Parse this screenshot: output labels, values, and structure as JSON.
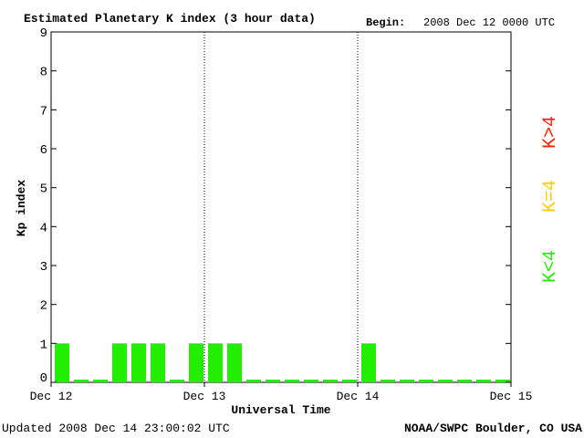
{
  "header": {
    "title": "Estimated Planetary K index (3 hour data)",
    "begin_label": "Begin:",
    "begin_value": "2008 Dec 12 0000 UTC"
  },
  "footer": {
    "updated_label": "Updated",
    "updated_value": "2008 Dec 14 23:00:02 UTC",
    "credit": "NOAA/SWPC Boulder, CO USA"
  },
  "legend": [
    {
      "label": "K>4",
      "color": "#ff2200"
    },
    {
      "label": "K=4",
      "color": "#ffcc00"
    },
    {
      "label": "K<4",
      "color": "#22ee00"
    }
  ],
  "chart_data": {
    "type": "bar",
    "title": "Estimated Planetary K index (3 hour data)",
    "xlabel": "Universal Time",
    "ylabel": "Kp index",
    "ylim": [
      0,
      9
    ],
    "yticks": [
      0,
      1,
      2,
      3,
      4,
      5,
      6,
      7,
      8,
      9
    ],
    "day_labels": [
      "Dec 12",
      "Dec 13",
      "Dec 14",
      "Dec 15"
    ],
    "slots_per_day": 8,
    "bar_color": "#22ee00",
    "values": [
      1,
      0,
      0,
      1,
      1,
      1,
      0,
      1,
      1,
      1,
      0,
      0,
      0,
      0,
      0,
      0,
      1,
      0,
      0,
      0,
      0,
      0,
      0,
      0
    ]
  }
}
